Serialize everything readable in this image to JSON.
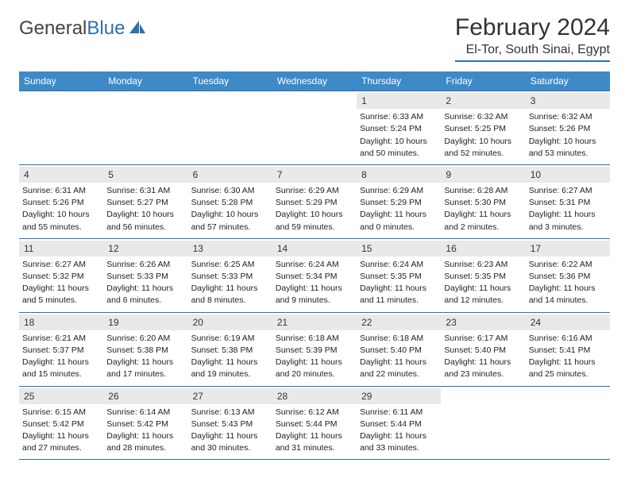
{
  "logo": {
    "word1": "General",
    "word2": "Blue"
  },
  "title": "February 2024",
  "location": "El-Tor, South Sinai, Egypt",
  "colors": {
    "header_bar": "#3E89C7",
    "rule": "#2F6FAF",
    "daynum_bg": "#E9E9E9",
    "text": "#222222",
    "background": "#ffffff"
  },
  "fonts": {
    "title_size_pt": 22,
    "location_size_pt": 12,
    "weekday_size_pt": 9,
    "body_size_pt": 8
  },
  "weekdays": [
    "Sunday",
    "Monday",
    "Tuesday",
    "Wednesday",
    "Thursday",
    "Friday",
    "Saturday"
  ],
  "weeks": [
    [
      null,
      null,
      null,
      null,
      {
        "n": "1",
        "sunrise": "Sunrise: 6:33 AM",
        "sunset": "Sunset: 5:24 PM",
        "dl1": "Daylight: 10 hours",
        "dl2": "and 50 minutes."
      },
      {
        "n": "2",
        "sunrise": "Sunrise: 6:32 AM",
        "sunset": "Sunset: 5:25 PM",
        "dl1": "Daylight: 10 hours",
        "dl2": "and 52 minutes."
      },
      {
        "n": "3",
        "sunrise": "Sunrise: 6:32 AM",
        "sunset": "Sunset: 5:26 PM",
        "dl1": "Daylight: 10 hours",
        "dl2": "and 53 minutes."
      }
    ],
    [
      {
        "n": "4",
        "sunrise": "Sunrise: 6:31 AM",
        "sunset": "Sunset: 5:26 PM",
        "dl1": "Daylight: 10 hours",
        "dl2": "and 55 minutes."
      },
      {
        "n": "5",
        "sunrise": "Sunrise: 6:31 AM",
        "sunset": "Sunset: 5:27 PM",
        "dl1": "Daylight: 10 hours",
        "dl2": "and 56 minutes."
      },
      {
        "n": "6",
        "sunrise": "Sunrise: 6:30 AM",
        "sunset": "Sunset: 5:28 PM",
        "dl1": "Daylight: 10 hours",
        "dl2": "and 57 minutes."
      },
      {
        "n": "7",
        "sunrise": "Sunrise: 6:29 AM",
        "sunset": "Sunset: 5:29 PM",
        "dl1": "Daylight: 10 hours",
        "dl2": "and 59 minutes."
      },
      {
        "n": "8",
        "sunrise": "Sunrise: 6:29 AM",
        "sunset": "Sunset: 5:29 PM",
        "dl1": "Daylight: 11 hours",
        "dl2": "and 0 minutes."
      },
      {
        "n": "9",
        "sunrise": "Sunrise: 6:28 AM",
        "sunset": "Sunset: 5:30 PM",
        "dl1": "Daylight: 11 hours",
        "dl2": "and 2 minutes."
      },
      {
        "n": "10",
        "sunrise": "Sunrise: 6:27 AM",
        "sunset": "Sunset: 5:31 PM",
        "dl1": "Daylight: 11 hours",
        "dl2": "and 3 minutes."
      }
    ],
    [
      {
        "n": "11",
        "sunrise": "Sunrise: 6:27 AM",
        "sunset": "Sunset: 5:32 PM",
        "dl1": "Daylight: 11 hours",
        "dl2": "and 5 minutes."
      },
      {
        "n": "12",
        "sunrise": "Sunrise: 6:26 AM",
        "sunset": "Sunset: 5:33 PM",
        "dl1": "Daylight: 11 hours",
        "dl2": "and 6 minutes."
      },
      {
        "n": "13",
        "sunrise": "Sunrise: 6:25 AM",
        "sunset": "Sunset: 5:33 PM",
        "dl1": "Daylight: 11 hours",
        "dl2": "and 8 minutes."
      },
      {
        "n": "14",
        "sunrise": "Sunrise: 6:24 AM",
        "sunset": "Sunset: 5:34 PM",
        "dl1": "Daylight: 11 hours",
        "dl2": "and 9 minutes."
      },
      {
        "n": "15",
        "sunrise": "Sunrise: 6:24 AM",
        "sunset": "Sunset: 5:35 PM",
        "dl1": "Daylight: 11 hours",
        "dl2": "and 11 minutes."
      },
      {
        "n": "16",
        "sunrise": "Sunrise: 6:23 AM",
        "sunset": "Sunset: 5:35 PM",
        "dl1": "Daylight: 11 hours",
        "dl2": "and 12 minutes."
      },
      {
        "n": "17",
        "sunrise": "Sunrise: 6:22 AM",
        "sunset": "Sunset: 5:36 PM",
        "dl1": "Daylight: 11 hours",
        "dl2": "and 14 minutes."
      }
    ],
    [
      {
        "n": "18",
        "sunrise": "Sunrise: 6:21 AM",
        "sunset": "Sunset: 5:37 PM",
        "dl1": "Daylight: 11 hours",
        "dl2": "and 15 minutes."
      },
      {
        "n": "19",
        "sunrise": "Sunrise: 6:20 AM",
        "sunset": "Sunset: 5:38 PM",
        "dl1": "Daylight: 11 hours",
        "dl2": "and 17 minutes."
      },
      {
        "n": "20",
        "sunrise": "Sunrise: 6:19 AM",
        "sunset": "Sunset: 5:38 PM",
        "dl1": "Daylight: 11 hours",
        "dl2": "and 19 minutes."
      },
      {
        "n": "21",
        "sunrise": "Sunrise: 6:18 AM",
        "sunset": "Sunset: 5:39 PM",
        "dl1": "Daylight: 11 hours",
        "dl2": "and 20 minutes."
      },
      {
        "n": "22",
        "sunrise": "Sunrise: 6:18 AM",
        "sunset": "Sunset: 5:40 PM",
        "dl1": "Daylight: 11 hours",
        "dl2": "and 22 minutes."
      },
      {
        "n": "23",
        "sunrise": "Sunrise: 6:17 AM",
        "sunset": "Sunset: 5:40 PM",
        "dl1": "Daylight: 11 hours",
        "dl2": "and 23 minutes."
      },
      {
        "n": "24",
        "sunrise": "Sunrise: 6:16 AM",
        "sunset": "Sunset: 5:41 PM",
        "dl1": "Daylight: 11 hours",
        "dl2": "and 25 minutes."
      }
    ],
    [
      {
        "n": "25",
        "sunrise": "Sunrise: 6:15 AM",
        "sunset": "Sunset: 5:42 PM",
        "dl1": "Daylight: 11 hours",
        "dl2": "and 27 minutes."
      },
      {
        "n": "26",
        "sunrise": "Sunrise: 6:14 AM",
        "sunset": "Sunset: 5:42 PM",
        "dl1": "Daylight: 11 hours",
        "dl2": "and 28 minutes."
      },
      {
        "n": "27",
        "sunrise": "Sunrise: 6:13 AM",
        "sunset": "Sunset: 5:43 PM",
        "dl1": "Daylight: 11 hours",
        "dl2": "and 30 minutes."
      },
      {
        "n": "28",
        "sunrise": "Sunrise: 6:12 AM",
        "sunset": "Sunset: 5:44 PM",
        "dl1": "Daylight: 11 hours",
        "dl2": "and 31 minutes."
      },
      {
        "n": "29",
        "sunrise": "Sunrise: 6:11 AM",
        "sunset": "Sunset: 5:44 PM",
        "dl1": "Daylight: 11 hours",
        "dl2": "and 33 minutes."
      },
      null,
      null
    ]
  ]
}
